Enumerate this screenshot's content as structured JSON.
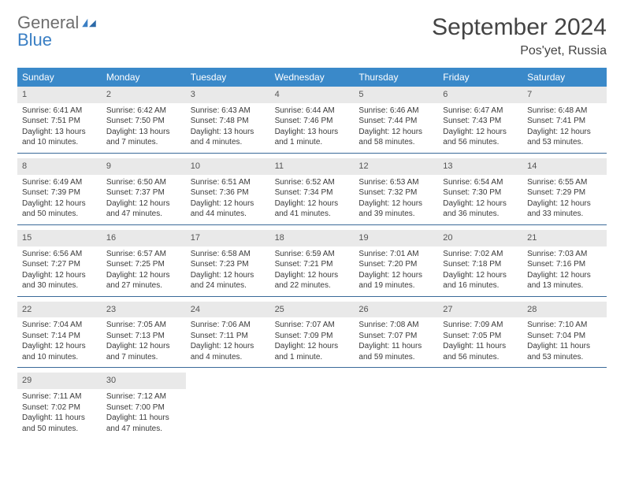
{
  "logo": {
    "text1": "General",
    "text2": "Blue"
  },
  "title": "September 2024",
  "location": "Pos'yet, Russia",
  "colors": {
    "header_bg": "#3a89c9",
    "header_text": "#ffffff",
    "daynum_bg": "#e9e9e9",
    "week_border": "#3a6a99",
    "text": "#3a3a3a",
    "logo_gray": "#6e6e6e",
    "logo_blue": "#3a7fc4"
  },
  "day_names": [
    "Sunday",
    "Monday",
    "Tuesday",
    "Wednesday",
    "Thursday",
    "Friday",
    "Saturday"
  ],
  "weeks": [
    [
      {
        "day": 1,
        "sunrise": "6:41 AM",
        "sunset": "7:51 PM",
        "daylight": "13 hours and 10 minutes."
      },
      {
        "day": 2,
        "sunrise": "6:42 AM",
        "sunset": "7:50 PM",
        "daylight": "13 hours and 7 minutes."
      },
      {
        "day": 3,
        "sunrise": "6:43 AM",
        "sunset": "7:48 PM",
        "daylight": "13 hours and 4 minutes."
      },
      {
        "day": 4,
        "sunrise": "6:44 AM",
        "sunset": "7:46 PM",
        "daylight": "13 hours and 1 minute."
      },
      {
        "day": 5,
        "sunrise": "6:46 AM",
        "sunset": "7:44 PM",
        "daylight": "12 hours and 58 minutes."
      },
      {
        "day": 6,
        "sunrise": "6:47 AM",
        "sunset": "7:43 PM",
        "daylight": "12 hours and 56 minutes."
      },
      {
        "day": 7,
        "sunrise": "6:48 AM",
        "sunset": "7:41 PM",
        "daylight": "12 hours and 53 minutes."
      }
    ],
    [
      {
        "day": 8,
        "sunrise": "6:49 AM",
        "sunset": "7:39 PM",
        "daylight": "12 hours and 50 minutes."
      },
      {
        "day": 9,
        "sunrise": "6:50 AM",
        "sunset": "7:37 PM",
        "daylight": "12 hours and 47 minutes."
      },
      {
        "day": 10,
        "sunrise": "6:51 AM",
        "sunset": "7:36 PM",
        "daylight": "12 hours and 44 minutes."
      },
      {
        "day": 11,
        "sunrise": "6:52 AM",
        "sunset": "7:34 PM",
        "daylight": "12 hours and 41 minutes."
      },
      {
        "day": 12,
        "sunrise": "6:53 AM",
        "sunset": "7:32 PM",
        "daylight": "12 hours and 39 minutes."
      },
      {
        "day": 13,
        "sunrise": "6:54 AM",
        "sunset": "7:30 PM",
        "daylight": "12 hours and 36 minutes."
      },
      {
        "day": 14,
        "sunrise": "6:55 AM",
        "sunset": "7:29 PM",
        "daylight": "12 hours and 33 minutes."
      }
    ],
    [
      {
        "day": 15,
        "sunrise": "6:56 AM",
        "sunset": "7:27 PM",
        "daylight": "12 hours and 30 minutes."
      },
      {
        "day": 16,
        "sunrise": "6:57 AM",
        "sunset": "7:25 PM",
        "daylight": "12 hours and 27 minutes."
      },
      {
        "day": 17,
        "sunrise": "6:58 AM",
        "sunset": "7:23 PM",
        "daylight": "12 hours and 24 minutes."
      },
      {
        "day": 18,
        "sunrise": "6:59 AM",
        "sunset": "7:21 PM",
        "daylight": "12 hours and 22 minutes."
      },
      {
        "day": 19,
        "sunrise": "7:01 AM",
        "sunset": "7:20 PM",
        "daylight": "12 hours and 19 minutes."
      },
      {
        "day": 20,
        "sunrise": "7:02 AM",
        "sunset": "7:18 PM",
        "daylight": "12 hours and 16 minutes."
      },
      {
        "day": 21,
        "sunrise": "7:03 AM",
        "sunset": "7:16 PM",
        "daylight": "12 hours and 13 minutes."
      }
    ],
    [
      {
        "day": 22,
        "sunrise": "7:04 AM",
        "sunset": "7:14 PM",
        "daylight": "12 hours and 10 minutes."
      },
      {
        "day": 23,
        "sunrise": "7:05 AM",
        "sunset": "7:13 PM",
        "daylight": "12 hours and 7 minutes."
      },
      {
        "day": 24,
        "sunrise": "7:06 AM",
        "sunset": "7:11 PM",
        "daylight": "12 hours and 4 minutes."
      },
      {
        "day": 25,
        "sunrise": "7:07 AM",
        "sunset": "7:09 PM",
        "daylight": "12 hours and 1 minute."
      },
      {
        "day": 26,
        "sunrise": "7:08 AM",
        "sunset": "7:07 PM",
        "daylight": "11 hours and 59 minutes."
      },
      {
        "day": 27,
        "sunrise": "7:09 AM",
        "sunset": "7:05 PM",
        "daylight": "11 hours and 56 minutes."
      },
      {
        "day": 28,
        "sunrise": "7:10 AM",
        "sunset": "7:04 PM",
        "daylight": "11 hours and 53 minutes."
      }
    ],
    [
      {
        "day": 29,
        "sunrise": "7:11 AM",
        "sunset": "7:02 PM",
        "daylight": "11 hours and 50 minutes."
      },
      {
        "day": 30,
        "sunrise": "7:12 AM",
        "sunset": "7:00 PM",
        "daylight": "11 hours and 47 minutes."
      },
      null,
      null,
      null,
      null,
      null
    ]
  ]
}
